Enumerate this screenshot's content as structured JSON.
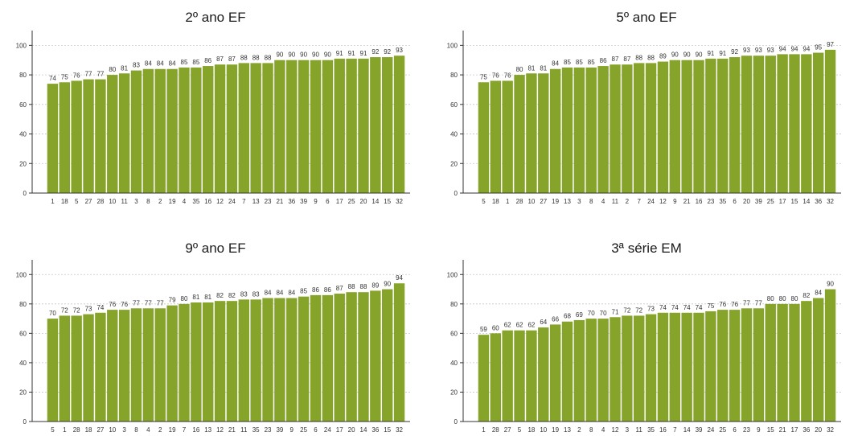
{
  "chart_data": [
    {
      "type": "bar",
      "title": "2º ano EF",
      "categories": [
        "1",
        "18",
        "5",
        "27",
        "28",
        "10",
        "11",
        "3",
        "8",
        "2",
        "19",
        "4",
        "35",
        "16",
        "12",
        "24",
        "7",
        "13",
        "23",
        "21",
        "36",
        "39",
        "9",
        "6",
        "17",
        "25",
        "20",
        "14",
        "15",
        "32"
      ],
      "values": [
        74,
        75,
        76,
        77,
        77,
        80,
        81,
        83,
        84,
        84,
        84,
        85,
        85,
        86,
        87,
        87,
        88,
        88,
        88,
        90,
        90,
        90,
        90,
        90,
        91,
        91,
        91,
        92,
        92,
        93
      ],
      "ylim": [
        0,
        110
      ],
      "yticks": [
        0,
        20,
        40,
        60,
        80,
        100
      ],
      "grid": true,
      "color": "#86a32a"
    },
    {
      "type": "bar",
      "title": "5º ano EF",
      "categories": [
        "5",
        "18",
        "1",
        "28",
        "10",
        "27",
        "19",
        "13",
        "3",
        "8",
        "4",
        "11",
        "2",
        "7",
        "24",
        "12",
        "9",
        "21",
        "16",
        "23",
        "35",
        "6",
        "20",
        "39",
        "25",
        "17",
        "15",
        "14",
        "36",
        "32"
      ],
      "values": [
        75,
        76,
        76,
        80,
        81,
        81,
        84,
        85,
        85,
        85,
        86,
        87,
        87,
        88,
        88,
        89,
        90,
        90,
        90,
        91,
        91,
        92,
        93,
        93,
        93,
        94,
        94,
        94,
        95,
        97
      ],
      "ylim": [
        0,
        110
      ],
      "yticks": [
        0,
        20,
        40,
        60,
        80,
        100
      ],
      "grid": true,
      "color": "#86a32a"
    },
    {
      "type": "bar",
      "title": "9º ano EF",
      "categories": [
        "5",
        "1",
        "28",
        "18",
        "27",
        "10",
        "3",
        "8",
        "4",
        "2",
        "19",
        "7",
        "16",
        "13",
        "12",
        "21",
        "11",
        "35",
        "23",
        "39",
        "9",
        "25",
        "6",
        "24",
        "17",
        "20",
        "14",
        "36",
        "15",
        "32"
      ],
      "values": [
        70,
        72,
        72,
        73,
        74,
        76,
        76,
        77,
        77,
        77,
        79,
        80,
        81,
        81,
        82,
        82,
        83,
        83,
        84,
        84,
        84,
        85,
        86,
        86,
        87,
        88,
        88,
        89,
        90,
        94
      ],
      "ylim": [
        0,
        110
      ],
      "yticks": [
        0,
        20,
        40,
        60,
        80,
        100
      ],
      "grid": true,
      "color": "#86a32a"
    },
    {
      "type": "bar",
      "title": "3ª série EM",
      "categories": [
        "1",
        "28",
        "27",
        "5",
        "18",
        "10",
        "19",
        "13",
        "2",
        "8",
        "4",
        "12",
        "3",
        "11",
        "35",
        "16",
        "7",
        "14",
        "39",
        "24",
        "25",
        "6",
        "23",
        "9",
        "15",
        "21",
        "17",
        "36",
        "20",
        "32"
      ],
      "values": [
        59,
        60,
        62,
        62,
        62,
        64,
        66,
        68,
        69,
        70,
        70,
        71,
        72,
        72,
        73,
        74,
        74,
        74,
        74,
        75,
        76,
        76,
        77,
        77,
        80,
        80,
        80,
        82,
        84,
        90
      ],
      "ylim": [
        0,
        110
      ],
      "yticks": [
        0,
        20,
        40,
        60,
        80,
        100
      ],
      "grid": true,
      "color": "#86a32a"
    }
  ]
}
